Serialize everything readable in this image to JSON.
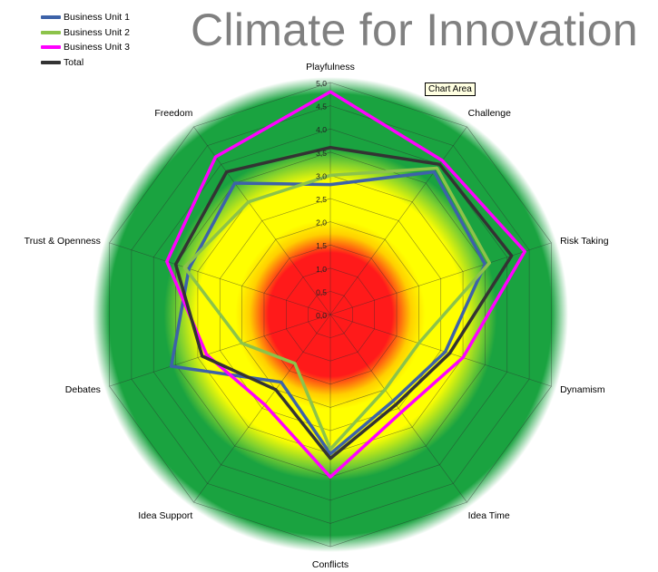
{
  "title": "Climate for Innovation",
  "tooltip": "Chart Area",
  "legend": [
    {
      "label": "Business Unit 1",
      "color": "#3d62a8"
    },
    {
      "label": "Business Unit 2",
      "color": "#8cc34a"
    },
    {
      "label": "Business Unit 3",
      "color": "#ff00ff"
    },
    {
      "label": "Total",
      "color": "#333333"
    }
  ],
  "chart_data": {
    "type": "radar",
    "title": "Climate for Innovation",
    "categories": [
      "Playfulness",
      "Challenge",
      "Risk Taking",
      "Dynamism",
      "Idea Time",
      "Conflicts",
      "Idea Support",
      "Debates",
      "Trust & Openness",
      "Freedom"
    ],
    "series": [
      {
        "name": "Business Unit 1",
        "color": "#3d62a8",
        "values": [
          2.8,
          3.8,
          3.5,
          2.6,
          2.3,
          3.0,
          1.8,
          3.6,
          3.2,
          3.5
        ]
      },
      {
        "name": "Business Unit 2",
        "color": "#8cc34a",
        "values": [
          3.0,
          3.9,
          3.6,
          2.0,
          2.0,
          2.9,
          1.3,
          2.0,
          3.3,
          3.0
        ]
      },
      {
        "name": "Business Unit 3",
        "color": "#ff00ff",
        "values": [
          4.8,
          4.1,
          4.4,
          3.0,
          2.6,
          3.5,
          2.4,
          2.8,
          3.7,
          4.2
        ]
      },
      {
        "name": "Total",
        "color": "#333333",
        "values": [
          3.6,
          4.0,
          4.1,
          2.7,
          2.4,
          3.1,
          2.0,
          2.9,
          3.5,
          3.8
        ]
      }
    ],
    "rlim": [
      0,
      5
    ],
    "r_ticks": [
      "0,0",
      "0,5",
      "1,0",
      "1,5",
      "2,0",
      "2,5",
      "3,0",
      "3,5",
      "4,0",
      "4,5",
      "5,0"
    ],
    "bands": [
      {
        "from": 0,
        "to": 1.5,
        "color": "#ff1a1a"
      },
      {
        "from": 1.5,
        "to": 3.0,
        "color": "#ffff00"
      },
      {
        "from": 3.0,
        "to": 5.0,
        "color": "#1aa340"
      }
    ],
    "grid": true,
    "legend_position": "top-left"
  }
}
